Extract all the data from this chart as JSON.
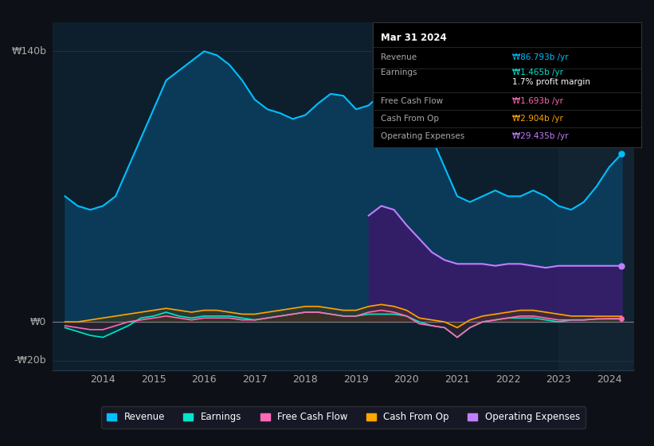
{
  "bg_color": "#0d1117",
  "plot_bg_color": "#0d1f2d",
  "grid_color": "#1e3a4a",
  "title_box": {
    "date": "Mar 31 2024",
    "rows": [
      {
        "label": "Revenue",
        "value": "₩86.793b /yr",
        "value_color": "#00bfff"
      },
      {
        "label": "Earnings",
        "value": "₩1.465b /yr",
        "value_color": "#00e5cc"
      },
      {
        "label": "",
        "value": "1.7% profit margin",
        "value_color": "#ffffff"
      },
      {
        "label": "Free Cash Flow",
        "value": "₩1.693b /yr",
        "value_color": "#ff69b4"
      },
      {
        "label": "Cash From Op",
        "value": "₩2.904b /yr",
        "value_color": "#ffa500"
      },
      {
        "label": "Operating Expenses",
        "value": "₩29.435b /yr",
        "value_color": "#bf7fff"
      }
    ]
  },
  "ylabel_top": "₩140b",
  "ylabel_zero": "₩0",
  "ylabel_bottom": "-₩20b",
  "xlim": [
    2013.0,
    2024.5
  ],
  "ylim": [
    -25,
    155
  ],
  "xticks": [
    2014,
    2015,
    2016,
    2017,
    2018,
    2019,
    2020,
    2021,
    2022,
    2023,
    2024
  ],
  "shaded_region_start": 2023.0,
  "legend": [
    {
      "label": "Revenue",
      "color": "#00bfff"
    },
    {
      "label": "Earnings",
      "color": "#00e5cc"
    },
    {
      "label": "Free Cash Flow",
      "color": "#ff69b4"
    },
    {
      "label": "Cash From Op",
      "color": "#ffa500"
    },
    {
      "label": "Operating Expenses",
      "color": "#bf7fff"
    }
  ],
  "revenue": {
    "x": [
      2013.25,
      2013.5,
      2013.75,
      2014.0,
      2014.25,
      2014.5,
      2014.75,
      2015.0,
      2015.25,
      2015.5,
      2015.75,
      2016.0,
      2016.25,
      2016.5,
      2016.75,
      2017.0,
      2017.25,
      2017.5,
      2017.75,
      2018.0,
      2018.25,
      2018.5,
      2018.75,
      2019.0,
      2019.25,
      2019.5,
      2019.75,
      2020.0,
      2020.25,
      2020.5,
      2020.75,
      2021.0,
      2021.25,
      2021.5,
      2021.75,
      2022.0,
      2022.25,
      2022.5,
      2022.75,
      2023.0,
      2023.25,
      2023.5,
      2023.75,
      2024.0,
      2024.25
    ],
    "y": [
      65,
      60,
      58,
      60,
      65,
      80,
      95,
      110,
      125,
      130,
      135,
      140,
      138,
      133,
      125,
      115,
      110,
      108,
      105,
      107,
      113,
      118,
      117,
      110,
      112,
      118,
      120,
      113,
      105,
      95,
      80,
      65,
      62,
      65,
      68,
      65,
      65,
      68,
      65,
      60,
      58,
      62,
      70,
      80,
      87
    ]
  },
  "earnings": {
    "x": [
      2013.25,
      2013.5,
      2013.75,
      2014.0,
      2014.25,
      2014.5,
      2014.75,
      2015.0,
      2015.25,
      2015.5,
      2015.75,
      2016.0,
      2016.25,
      2016.5,
      2016.75,
      2017.0,
      2017.25,
      2017.5,
      2017.75,
      2018.0,
      2018.25,
      2018.5,
      2018.75,
      2019.0,
      2019.25,
      2019.5,
      2019.75,
      2020.0,
      2020.25,
      2020.5,
      2020.75,
      2021.0,
      2021.25,
      2021.5,
      2021.75,
      2022.0,
      2022.25,
      2022.5,
      2022.75,
      2023.0,
      2023.25,
      2023.5,
      2023.75,
      2024.0,
      2024.25
    ],
    "y": [
      -3,
      -5,
      -7,
      -8,
      -5,
      -2,
      2,
      3,
      5,
      3,
      2,
      3,
      3,
      3,
      2,
      1,
      2,
      3,
      4,
      5,
      5,
      4,
      3,
      3,
      4,
      4,
      4,
      3,
      0,
      -2,
      -3,
      -8,
      -3,
      0,
      1,
      2,
      2,
      2,
      1,
      0,
      1,
      1,
      1.5,
      1.5,
      1.5
    ]
  },
  "free_cash_flow": {
    "x": [
      2013.25,
      2013.5,
      2013.75,
      2014.0,
      2014.25,
      2014.5,
      2014.75,
      2015.0,
      2015.25,
      2015.5,
      2015.75,
      2016.0,
      2016.25,
      2016.5,
      2016.75,
      2017.0,
      2017.25,
      2017.5,
      2017.75,
      2018.0,
      2018.25,
      2018.5,
      2018.75,
      2019.0,
      2019.25,
      2019.5,
      2019.75,
      2020.0,
      2020.25,
      2020.5,
      2020.75,
      2021.0,
      2021.25,
      2021.5,
      2021.75,
      2022.0,
      2022.25,
      2022.5,
      2022.75,
      2023.0,
      2023.25,
      2023.5,
      2023.75,
      2024.0,
      2024.25
    ],
    "y": [
      -2,
      -3,
      -4,
      -4,
      -2,
      0,
      1,
      2,
      3,
      2,
      1,
      2,
      2,
      2,
      1,
      1,
      2,
      3,
      4,
      5,
      5,
      4,
      3,
      3,
      5,
      6,
      5,
      3,
      -1,
      -2,
      -3,
      -8,
      -3,
      0,
      1,
      2,
      3,
      3,
      2,
      1,
      1,
      1,
      1.5,
      1.7,
      1.7
    ]
  },
  "cash_from_op": {
    "x": [
      2013.25,
      2013.5,
      2013.75,
      2014.0,
      2014.25,
      2014.5,
      2014.75,
      2015.0,
      2015.25,
      2015.5,
      2015.75,
      2016.0,
      2016.25,
      2016.5,
      2016.75,
      2017.0,
      2017.25,
      2017.5,
      2017.75,
      2018.0,
      2018.25,
      2018.5,
      2018.75,
      2019.0,
      2019.25,
      2019.5,
      2019.75,
      2020.0,
      2020.25,
      2020.5,
      2020.75,
      2021.0,
      2021.25,
      2021.5,
      2021.75,
      2022.0,
      2022.25,
      2022.5,
      2022.75,
      2023.0,
      2023.25,
      2023.5,
      2023.75,
      2024.0,
      2024.25
    ],
    "y": [
      0,
      0,
      1,
      2,
      3,
      4,
      5,
      6,
      7,
      6,
      5,
      6,
      6,
      5,
      4,
      4,
      5,
      6,
      7,
      8,
      8,
      7,
      6,
      6,
      8,
      9,
      8,
      6,
      2,
      1,
      0,
      -3,
      1,
      3,
      4,
      5,
      6,
      6,
      5,
      4,
      3,
      3,
      2.9,
      2.9,
      2.9
    ]
  },
  "op_expenses": {
    "x": [
      2019.25,
      2019.5,
      2019.75,
      2020.0,
      2020.25,
      2020.5,
      2020.75,
      2021.0,
      2021.25,
      2021.5,
      2021.75,
      2022.0,
      2022.25,
      2022.5,
      2022.75,
      2023.0,
      2023.25,
      2023.5,
      2023.75,
      2024.0,
      2024.25
    ],
    "y": [
      55,
      60,
      58,
      50,
      43,
      36,
      32,
      30,
      30,
      30,
      29,
      30,
      30,
      29,
      28,
      29,
      29,
      29,
      29,
      29,
      29
    ]
  }
}
